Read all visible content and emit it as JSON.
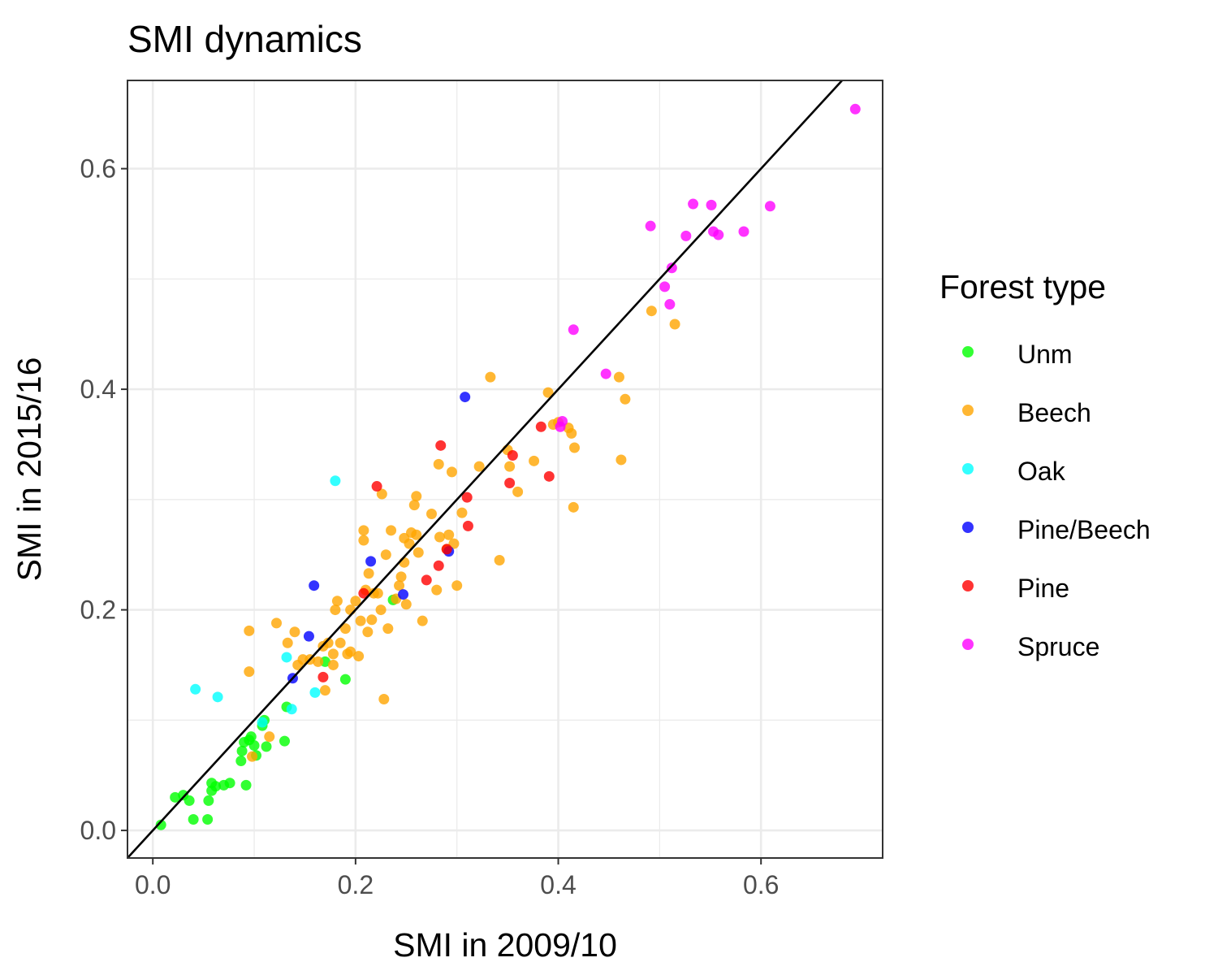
{
  "chart_data": {
    "type": "scatter",
    "title": "SMI dynamics",
    "xlabel": "SMI in 2009/10",
    "ylabel": "SMI in 2015/16",
    "xlim": [
      -0.025,
      0.72
    ],
    "ylim": [
      -0.025,
      0.68
    ],
    "x_ticks": [
      0.0,
      0.2,
      0.4,
      0.6
    ],
    "y_ticks": [
      0.0,
      0.2,
      0.4,
      0.6
    ],
    "x_tick_labels": [
      "0.0",
      "0.2",
      "0.4",
      "0.6"
    ],
    "y_tick_labels": [
      "0.0",
      "0.2",
      "0.4",
      "0.6"
    ],
    "grid": true,
    "legend_title": "Forest type",
    "legend_position": "right",
    "reference_line": {
      "type": "identity",
      "slope": 1,
      "intercept": 0,
      "color": "#000000"
    },
    "series": [
      {
        "name": "Unm",
        "color": "#00ff00",
        "points": [
          [
            0.008,
            0.005
          ],
          [
            0.022,
            0.03
          ],
          [
            0.03,
            0.032
          ],
          [
            0.036,
            0.027
          ],
          [
            0.04,
            0.01
          ],
          [
            0.054,
            0.01
          ],
          [
            0.055,
            0.027
          ],
          [
            0.058,
            0.036
          ],
          [
            0.058,
            0.043
          ],
          [
            0.062,
            0.04
          ],
          [
            0.07,
            0.041
          ],
          [
            0.076,
            0.043
          ],
          [
            0.087,
            0.063
          ],
          [
            0.088,
            0.072
          ],
          [
            0.09,
            0.08
          ],
          [
            0.092,
            0.041
          ],
          [
            0.095,
            0.082
          ],
          [
            0.097,
            0.085
          ],
          [
            0.1,
            0.077
          ],
          [
            0.102,
            0.068
          ],
          [
            0.108,
            0.095
          ],
          [
            0.11,
            0.1
          ],
          [
            0.112,
            0.076
          ],
          [
            0.13,
            0.081
          ],
          [
            0.132,
            0.112
          ],
          [
            0.17,
            0.153
          ],
          [
            0.19,
            0.137
          ],
          [
            0.237,
            0.209
          ]
        ]
      },
      {
        "name": "Beech",
        "color": "#ffa500",
        "points": [
          [
            0.095,
            0.181
          ],
          [
            0.095,
            0.144
          ],
          [
            0.098,
            0.067
          ],
          [
            0.115,
            0.085
          ],
          [
            0.122,
            0.188
          ],
          [
            0.133,
            0.17
          ],
          [
            0.14,
            0.18
          ],
          [
            0.143,
            0.15
          ],
          [
            0.148,
            0.155
          ],
          [
            0.155,
            0.155
          ],
          [
            0.163,
            0.153
          ],
          [
            0.168,
            0.167
          ],
          [
            0.17,
            0.127
          ],
          [
            0.173,
            0.17
          ],
          [
            0.178,
            0.15
          ],
          [
            0.178,
            0.16
          ],
          [
            0.18,
            0.2
          ],
          [
            0.182,
            0.208
          ],
          [
            0.185,
            0.17
          ],
          [
            0.19,
            0.183
          ],
          [
            0.192,
            0.16
          ],
          [
            0.195,
            0.162
          ],
          [
            0.195,
            0.2
          ],
          [
            0.2,
            0.208
          ],
          [
            0.203,
            0.158
          ],
          [
            0.205,
            0.19
          ],
          [
            0.208,
            0.263
          ],
          [
            0.208,
            0.272
          ],
          [
            0.21,
            0.218
          ],
          [
            0.212,
            0.18
          ],
          [
            0.213,
            0.233
          ],
          [
            0.216,
            0.191
          ],
          [
            0.218,
            0.215
          ],
          [
            0.222,
            0.215
          ],
          [
            0.225,
            0.2
          ],
          [
            0.226,
            0.305
          ],
          [
            0.228,
            0.119
          ],
          [
            0.23,
            0.25
          ],
          [
            0.232,
            0.183
          ],
          [
            0.235,
            0.272
          ],
          [
            0.24,
            0.21
          ],
          [
            0.243,
            0.222
          ],
          [
            0.245,
            0.23
          ],
          [
            0.248,
            0.243
          ],
          [
            0.248,
            0.265
          ],
          [
            0.25,
            0.205
          ],
          [
            0.253,
            0.26
          ],
          [
            0.255,
            0.27
          ],
          [
            0.258,
            0.295
          ],
          [
            0.26,
            0.303
          ],
          [
            0.26,
            0.268
          ],
          [
            0.262,
            0.252
          ],
          [
            0.266,
            0.19
          ],
          [
            0.275,
            0.287
          ],
          [
            0.28,
            0.218
          ],
          [
            0.282,
            0.332
          ],
          [
            0.283,
            0.266
          ],
          [
            0.29,
            0.255
          ],
          [
            0.292,
            0.268
          ],
          [
            0.295,
            0.325
          ],
          [
            0.297,
            0.26
          ],
          [
            0.3,
            0.222
          ],
          [
            0.305,
            0.288
          ],
          [
            0.322,
            0.33
          ],
          [
            0.333,
            0.411
          ],
          [
            0.342,
            0.245
          ],
          [
            0.35,
            0.345
          ],
          [
            0.352,
            0.33
          ],
          [
            0.36,
            0.307
          ],
          [
            0.376,
            0.335
          ],
          [
            0.39,
            0.397
          ],
          [
            0.395,
            0.368
          ],
          [
            0.4,
            0.37
          ],
          [
            0.41,
            0.365
          ],
          [
            0.413,
            0.36
          ],
          [
            0.415,
            0.293
          ],
          [
            0.416,
            0.347
          ],
          [
            0.46,
            0.411
          ],
          [
            0.462,
            0.336
          ],
          [
            0.466,
            0.391
          ],
          [
            0.492,
            0.471
          ],
          [
            0.515,
            0.459
          ]
        ]
      },
      {
        "name": "Oak",
        "color": "#00ffff",
        "points": [
          [
            0.042,
            0.128
          ],
          [
            0.064,
            0.121
          ],
          [
            0.108,
            0.098
          ],
          [
            0.132,
            0.157
          ],
          [
            0.137,
            0.11
          ],
          [
            0.16,
            0.125
          ],
          [
            0.18,
            0.317
          ]
        ]
      },
      {
        "name": "Pine/Beech",
        "color": "#0000ff",
        "points": [
          [
            0.138,
            0.138
          ],
          [
            0.154,
            0.176
          ],
          [
            0.159,
            0.222
          ],
          [
            0.215,
            0.244
          ],
          [
            0.247,
            0.214
          ],
          [
            0.292,
            0.253
          ],
          [
            0.308,
            0.393
          ]
        ]
      },
      {
        "name": "Pine",
        "color": "#ff0000",
        "points": [
          [
            0.168,
            0.139
          ],
          [
            0.208,
            0.215
          ],
          [
            0.221,
            0.312
          ],
          [
            0.27,
            0.227
          ],
          [
            0.282,
            0.24
          ],
          [
            0.284,
            0.349
          ],
          [
            0.29,
            0.255
          ],
          [
            0.31,
            0.302
          ],
          [
            0.311,
            0.276
          ],
          [
            0.352,
            0.315
          ],
          [
            0.355,
            0.34
          ],
          [
            0.383,
            0.366
          ],
          [
            0.391,
            0.321
          ]
        ]
      },
      {
        "name": "Spruce",
        "color": "#ff00ff",
        "points": [
          [
            0.402,
            0.366
          ],
          [
            0.404,
            0.371
          ],
          [
            0.415,
            0.454
          ],
          [
            0.447,
            0.414
          ],
          [
            0.491,
            0.548
          ],
          [
            0.505,
            0.493
          ],
          [
            0.51,
            0.477
          ],
          [
            0.512,
            0.51
          ],
          [
            0.526,
            0.539
          ],
          [
            0.533,
            0.568
          ],
          [
            0.551,
            0.567
          ],
          [
            0.553,
            0.543
          ],
          [
            0.558,
            0.54
          ],
          [
            0.583,
            0.543
          ],
          [
            0.609,
            0.566
          ],
          [
            0.693,
            0.654
          ]
        ]
      }
    ]
  }
}
